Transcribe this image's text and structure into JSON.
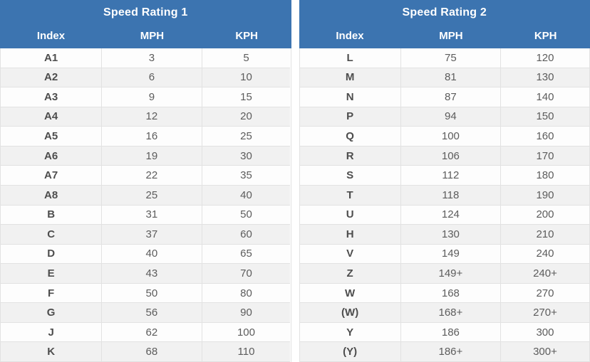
{
  "colors": {
    "header_bg": "#3c74b0",
    "header_text": "#ffffff",
    "row_even_bg": "#fdfdfd",
    "row_odd_bg": "#f1f1f1",
    "border": "#e2e2e2",
    "index_text": "#4d4d4d",
    "value_text": "#5c5c5c"
  },
  "chart_data": [
    {
      "type": "table",
      "title": "Speed Rating 1",
      "columns": [
        "Index",
        "MPH",
        "KPH"
      ],
      "rows": [
        [
          "A1",
          "3",
          "5"
        ],
        [
          "A2",
          "6",
          "10"
        ],
        [
          "A3",
          "9",
          "15"
        ],
        [
          "A4",
          "12",
          "20"
        ],
        [
          "A5",
          "16",
          "25"
        ],
        [
          "A6",
          "19",
          "30"
        ],
        [
          "A7",
          "22",
          "35"
        ],
        [
          "A8",
          "25",
          "40"
        ],
        [
          "B",
          "31",
          "50"
        ],
        [
          "C",
          "37",
          "60"
        ],
        [
          "D",
          "40",
          "65"
        ],
        [
          "E",
          "43",
          "70"
        ],
        [
          "F",
          "50",
          "80"
        ],
        [
          "G",
          "56",
          "90"
        ],
        [
          "J",
          "62",
          "100"
        ],
        [
          "K",
          "68",
          "110"
        ]
      ]
    },
    {
      "type": "table",
      "title": "Speed Rating 2",
      "columns": [
        "Index",
        "MPH",
        "KPH"
      ],
      "rows": [
        [
          "L",
          "75",
          "120"
        ],
        [
          "M",
          "81",
          "130"
        ],
        [
          "N",
          "87",
          "140"
        ],
        [
          "P",
          "94",
          "150"
        ],
        [
          "Q",
          "100",
          "160"
        ],
        [
          "R",
          "106",
          "170"
        ],
        [
          "S",
          "112",
          "180"
        ],
        [
          "T",
          "118",
          "190"
        ],
        [
          "U",
          "124",
          "200"
        ],
        [
          "H",
          "130",
          "210"
        ],
        [
          "V",
          "149",
          "240"
        ],
        [
          "Z",
          "149+",
          "240+"
        ],
        [
          "W",
          "168",
          "270"
        ],
        [
          "(W)",
          "168+",
          "270+"
        ],
        [
          "Y",
          "186",
          "300"
        ],
        [
          "(Y)",
          "186+",
          "300+"
        ]
      ]
    }
  ]
}
